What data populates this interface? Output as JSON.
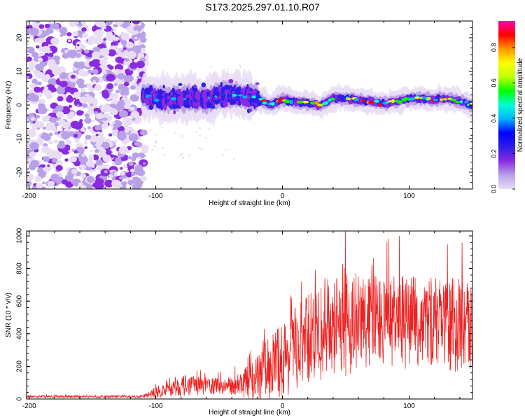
{
  "title": "S173.2025.297.01.10.R07",
  "chart_data": [
    {
      "type": "heatmap",
      "xlabel": "Height of straight line (km)",
      "ylabel": "Frequency (Hz)",
      "xlim": [
        -202,
        150
      ],
      "ylim": [
        -25,
        25
      ],
      "xticks": [
        -200,
        -100,
        0,
        100
      ],
      "yticks": [
        -20,
        -10,
        0,
        10,
        20
      ],
      "colorbar": {
        "label": "Normalized spectral amplitude",
        "range": [
          0,
          0.95
        ],
        "ticks": [
          0.0,
          0.2,
          0.4,
          0.6,
          0.8
        ],
        "colors": [
          "#e8ddf5",
          "#b9a1e8",
          "#8a2be2",
          "#2d1ee8",
          "#0000ff",
          "#00b4ff",
          "#00ffd2",
          "#00ff00",
          "#bfff00",
          "#ffff00",
          "#ff9600",
          "#ff0000",
          "#ff00b0"
        ]
      },
      "line_center_freq": {
        "x": [
          -110,
          -100,
          -90,
          -80,
          -70,
          -60,
          -50,
          -40,
          -30,
          -20,
          -10,
          0,
          10,
          20,
          30,
          40,
          50,
          60,
          70,
          80,
          90,
          100,
          110,
          120,
          130,
          140,
          150
        ],
        "y": [
          3,
          2,
          1.5,
          2,
          2,
          1.5,
          3,
          3,
          2.5,
          2,
          0,
          1.5,
          1,
          0.5,
          0,
          2,
          2,
          1.5,
          1,
          0.5,
          1,
          2,
          2,
          1.5,
          2,
          1,
          0
        ]
      },
      "noise_region_x": [
        -202,
        -108
      ]
    },
    {
      "type": "line",
      "xlabel": "Height of straight line (km)",
      "ylabel": "SNR (10 * v/v)",
      "xlim": [
        -202,
        150
      ],
      "ylim": [
        0,
        1030
      ],
      "xticks": [
        -200,
        -100,
        0,
        100
      ],
      "yticks": [
        0,
        200,
        400,
        600,
        800,
        1000
      ],
      "series": [
        {
          "name": "SNR",
          "color": "#ee2222",
          "envelope_x": [
            -202,
            -110,
            -100,
            -80,
            -60,
            -40,
            -20,
            -10,
            0,
            20,
            40,
            50,
            60,
            80,
            100,
            120,
            140,
            150
          ],
          "envelope_mean": [
            15,
            15,
            40,
            80,
            80,
            80,
            120,
            200,
            240,
            360,
            430,
            470,
            470,
            480,
            470,
            470,
            450,
            440
          ],
          "envelope_spread": [
            8,
            8,
            40,
            70,
            60,
            60,
            150,
            230,
            260,
            320,
            330,
            380,
            350,
            300,
            320,
            320,
            320,
            300
          ]
        }
      ]
    }
  ]
}
